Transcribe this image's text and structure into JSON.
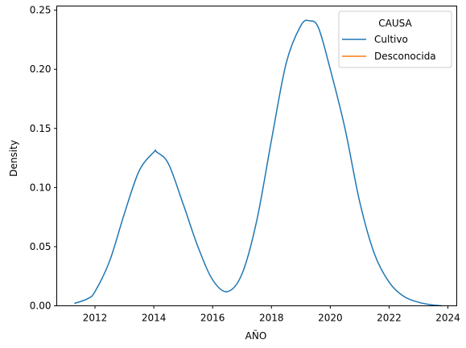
{
  "chart_data": {
    "type": "line",
    "xlabel": "AÑO",
    "ylabel": "Density",
    "xlim": [
      2010.7,
      2024.3
    ],
    "ylim": [
      0,
      0.2535
    ],
    "x_ticks": [
      2012,
      2014,
      2016,
      2018,
      2020,
      2022,
      2024
    ],
    "x_tick_labels": [
      "2012",
      "2014",
      "2016",
      "2018",
      "2020",
      "2022",
      "2024"
    ],
    "y_ticks": [
      0.0,
      0.05,
      0.1,
      0.15,
      0.2,
      0.25
    ],
    "y_tick_labels": [
      "0.00",
      "0.05",
      "0.10",
      "0.15",
      "0.20",
      "0.25"
    ],
    "grid": false,
    "legend": {
      "title": "CAUSA",
      "placement": "top-right",
      "entries": [
        {
          "name": "Cultivo",
          "color": "#1f77b4"
        },
        {
          "name": "Desconocida",
          "color": "#ff7f0e"
        }
      ]
    },
    "series": [
      {
        "name": "Cultivo",
        "color": "#1f77b4",
        "x": [
          2011.3,
          2011.75,
          2012.0,
          2012.5,
          2013.0,
          2013.5,
          2014.0,
          2014.1,
          2014.5,
          2015.0,
          2015.5,
          2016.0,
          2016.5,
          2017.0,
          2017.5,
          2018.0,
          2018.5,
          2019.0,
          2019.3,
          2019.6,
          2020.0,
          2020.5,
          2021.0,
          2021.5,
          2022.0,
          2022.5,
          2023.0,
          2023.4,
          2023.8
        ],
        "y": [
          0.002,
          0.006,
          0.012,
          0.038,
          0.078,
          0.114,
          0.13,
          0.13,
          0.12,
          0.086,
          0.05,
          0.022,
          0.012,
          0.027,
          0.072,
          0.14,
          0.205,
          0.237,
          0.241,
          0.235,
          0.2,
          0.15,
          0.088,
          0.044,
          0.02,
          0.008,
          0.003,
          0.001,
          0.0
        ]
      },
      {
        "name": "Desconocida",
        "color": "#ff7f0e",
        "x": [],
        "y": []
      }
    ]
  }
}
